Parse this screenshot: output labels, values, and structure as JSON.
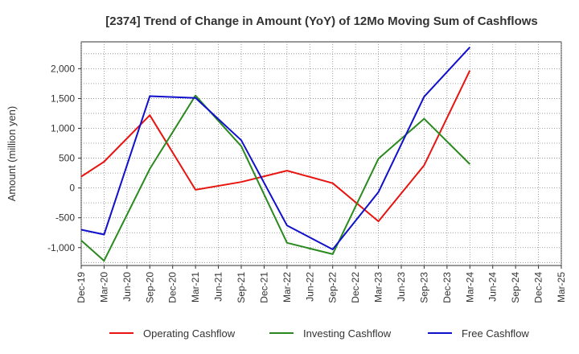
{
  "chart_data": {
    "type": "line",
    "title": "[2374]  Trend of Change in Amount (YoY) of 12Mo Moving Sum of Cashflows",
    "xlabel": "",
    "ylabel": "Amount (million yen)",
    "ylim": [
      -1300,
      2450
    ],
    "yticks": [
      -1000,
      -500,
      0,
      500,
      1000,
      1500,
      2000
    ],
    "ytick_labels": [
      "-1,000",
      "-500",
      "0",
      "500",
      "1,000",
      "1,500",
      "2,000"
    ],
    "categories": [
      "Dec-19",
      "Mar-20",
      "Jun-20",
      "Sep-20",
      "Dec-20",
      "Mar-21",
      "Jun-21",
      "Sep-21",
      "Dec-21",
      "Mar-22",
      "Jun-22",
      "Sep-22",
      "Dec-22",
      "Mar-23",
      "Jun-23",
      "Sep-23",
      "Dec-23",
      "Mar-24",
      "Jun-24",
      "Sep-24",
      "Dec-24",
      "Mar-25"
    ],
    "grid": true,
    "legend_position": "bottom",
    "series": [
      {
        "name": "Operating Cashflow",
        "color": "#e8140f",
        "values": [
          190,
          440,
          null,
          1220,
          null,
          -30,
          null,
          100,
          null,
          290,
          null,
          80,
          null,
          -560,
          null,
          380,
          null,
          1970,
          null,
          null,
          null,
          null
        ]
      },
      {
        "name": "Investing Cashflow",
        "color": "#2a8a1e",
        "values": [
          -880,
          -1220,
          null,
          320,
          null,
          1550,
          null,
          700,
          null,
          -920,
          null,
          -1110,
          null,
          490,
          null,
          1160,
          null,
          400,
          null,
          null,
          null,
          null
        ]
      },
      {
        "name": "Free Cashflow",
        "color": "#1010cc",
        "values": [
          -700,
          -780,
          null,
          1540,
          null,
          1510,
          null,
          800,
          null,
          -630,
          null,
          -1030,
          null,
          -70,
          null,
          1530,
          null,
          2360,
          null,
          null,
          null,
          null
        ]
      }
    ]
  }
}
